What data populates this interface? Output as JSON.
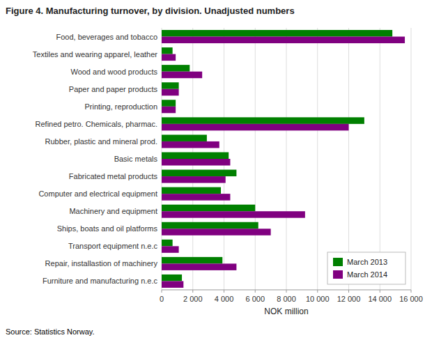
{
  "chart_data": {
    "type": "bar",
    "orientation": "horizontal",
    "title": "Figure 4. Manufacturing turnover, by division. Unadjusted numbers",
    "categories": [
      "Food, beverages and tobacco",
      "Textiles and wearing apparel, leather",
      "Wood and wood products",
      "Paper and paper products",
      "Printing, reproduction",
      "Refined petro. Chemicals, pharmac.",
      "Rubber, plastic and mineral prod.",
      "Basic metals",
      "Fabricated metal products",
      "Computer and electrical equipment",
      "Machinery and equipment",
      "Ships, boats and oil platforms",
      "Transport equipment n.e.c",
      "Repair, installastion of machinery",
      "Furniture and manufacturing n.e.c"
    ],
    "series": [
      {
        "name": "March 2013",
        "color": "#008000",
        "values": [
          14800,
          700,
          1800,
          1100,
          900,
          13000,
          2900,
          4300,
          4800,
          3800,
          6000,
          6200,
          700,
          3900,
          1300
        ]
      },
      {
        "name": "March 2014",
        "color": "#800080",
        "values": [
          15600,
          900,
          2600,
          1100,
          900,
          12000,
          3700,
          4400,
          4100,
          4400,
          9200,
          7000,
          1100,
          4800,
          1400
        ]
      }
    ],
    "xlabel": "NOK million",
    "xlim": [
      0,
      16000
    ],
    "xticks": [
      0,
      {
        "value": 2000,
        "label": "2 000"
      },
      {
        "value": 4000,
        "label": "4 000"
      },
      {
        "value": 6000,
        "label": "6 000"
      },
      {
        "value": 8000,
        "label": "8 000"
      },
      {
        "value": 10000,
        "label": "10 000"
      },
      {
        "value": 12000,
        "label": "12 000"
      },
      {
        "value": 14000,
        "label": "14 000"
      },
      {
        "value": 16000,
        "label": "16 000"
      }
    ],
    "grid": true,
    "legend": "lower right",
    "annotations": [
      "Source: Statistics Norway."
    ]
  }
}
